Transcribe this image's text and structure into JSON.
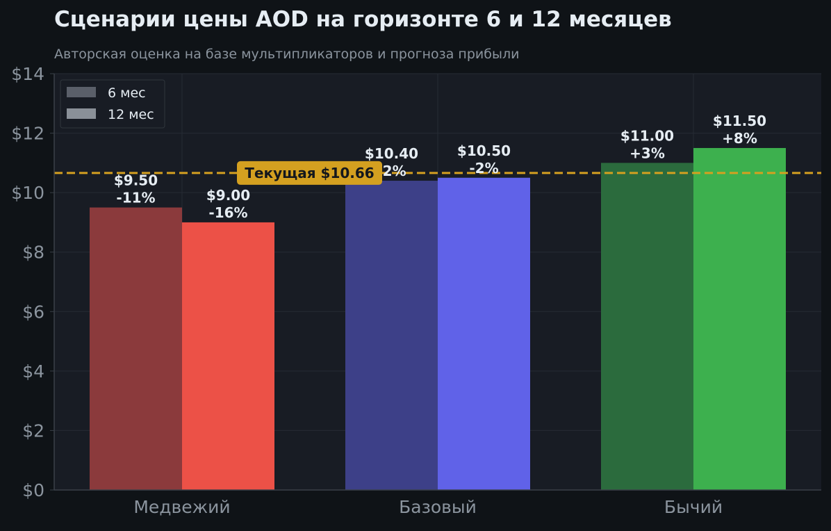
{
  "colors": {
    "background": "#0f1317",
    "plot_background": "#181c24",
    "grid": "#262b34",
    "title": "#e6edf3",
    "subtitle": "#8b949e",
    "tick": "#8b949e",
    "label": "#e6edf3",
    "reference": "#d4a020",
    "legend_bg": "#181c24",
    "legend_border": "#30363d",
    "legend_6m": "#5a5f69",
    "legend_12m": "#8a9098"
  },
  "chart_data": {
    "type": "bar",
    "title": "Сценарии цены AOD на горизонте 6 и 12 месяцев",
    "subtitle": "Авторская оценка на базе мультипликаторов и прогноза прибыли",
    "xlabel": "",
    "ylabel": "",
    "ylim": [
      0,
      14
    ],
    "yticks": [
      0,
      2,
      4,
      6,
      8,
      10,
      12,
      14
    ],
    "ytick_labels": [
      "$0",
      "$2",
      "$4",
      "$6",
      "$8",
      "$10",
      "$12",
      "$14"
    ],
    "grid": true,
    "legend_position": "top-left",
    "categories": [
      "Медвежий",
      "Базовый",
      "Бычий"
    ],
    "series": [
      {
        "name": "6 мес",
        "values": [
          9.5,
          10.4,
          11.0
        ],
        "value_labels": [
          "$9.50",
          "$10.40",
          "$11.00"
        ],
        "change_labels": [
          "-11%",
          "-2%",
          "+3%"
        ],
        "colors": [
          "#8b3a3c",
          "#3d4088",
          "#2b6b3d"
        ]
      },
      {
        "name": "12 мес",
        "values": [
          9.0,
          10.5,
          11.5
        ],
        "value_labels": [
          "$9.00",
          "$10.50",
          "$11.50"
        ],
        "change_labels": [
          "-16%",
          "-2%",
          "+8%"
        ],
        "colors": [
          "#ec5147",
          "#6062e8",
          "#3db04e"
        ]
      }
    ],
    "reference_line": {
      "value": 10.66,
      "label": "Текущая $10.66"
    }
  }
}
